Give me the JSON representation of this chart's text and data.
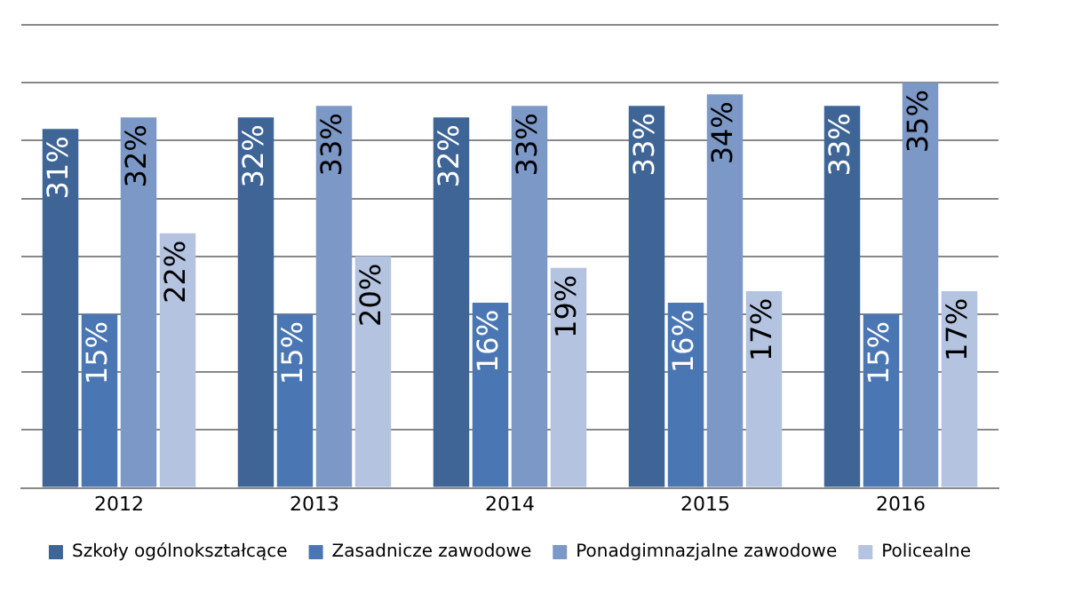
{
  "chart_data": {
    "type": "bar",
    "categories": [
      "2012",
      "2013",
      "2014",
      "2015",
      "2016"
    ],
    "series": [
      {
        "name": "Szkoły ogólnokształcące",
        "color": "#3e6596",
        "values": [
          31,
          32,
          32,
          33,
          33
        ],
        "value_labels": [
          "31%",
          "32%",
          "32%",
          "33%",
          "33%"
        ]
      },
      {
        "name": "Zasadnicze zawodowe",
        "color": "#4a77b4",
        "values": [
          15,
          15,
          16,
          16,
          15
        ],
        "value_labels": [
          "15%",
          "15%",
          "16%",
          "16%",
          "15%"
        ]
      },
      {
        "name": "Ponadgimnazjalne zawodowe",
        "color": "#7c98c7",
        "values": [
          32,
          33,
          33,
          34,
          35
        ],
        "value_labels": [
          "32%",
          "33%",
          "33%",
          "34%",
          "35%"
        ]
      },
      {
        "name": "Policealne",
        "color": "#b4c3df",
        "values": [
          22,
          20,
          19,
          17,
          17
        ],
        "value_labels": [
          "22%",
          "20%",
          "19%",
          "17%",
          "17%"
        ]
      }
    ],
    "ylim": [
      0,
      40
    ],
    "yticks": [
      {
        "value": 0,
        "label": null
      },
      {
        "value": 5,
        "label": null
      },
      {
        "value": 10,
        "label": null
      },
      {
        "value": 15,
        "label": null
      },
      {
        "value": 20,
        "label": null
      },
      {
        "value": 25,
        "label": null
      },
      {
        "value": 30,
        "label": null
      },
      {
        "value": 35,
        "label": null
      },
      {
        "value": 40,
        "label": null
      }
    ],
    "tick_labels": "x",
    "grid": "y",
    "legend": "bottom"
  }
}
